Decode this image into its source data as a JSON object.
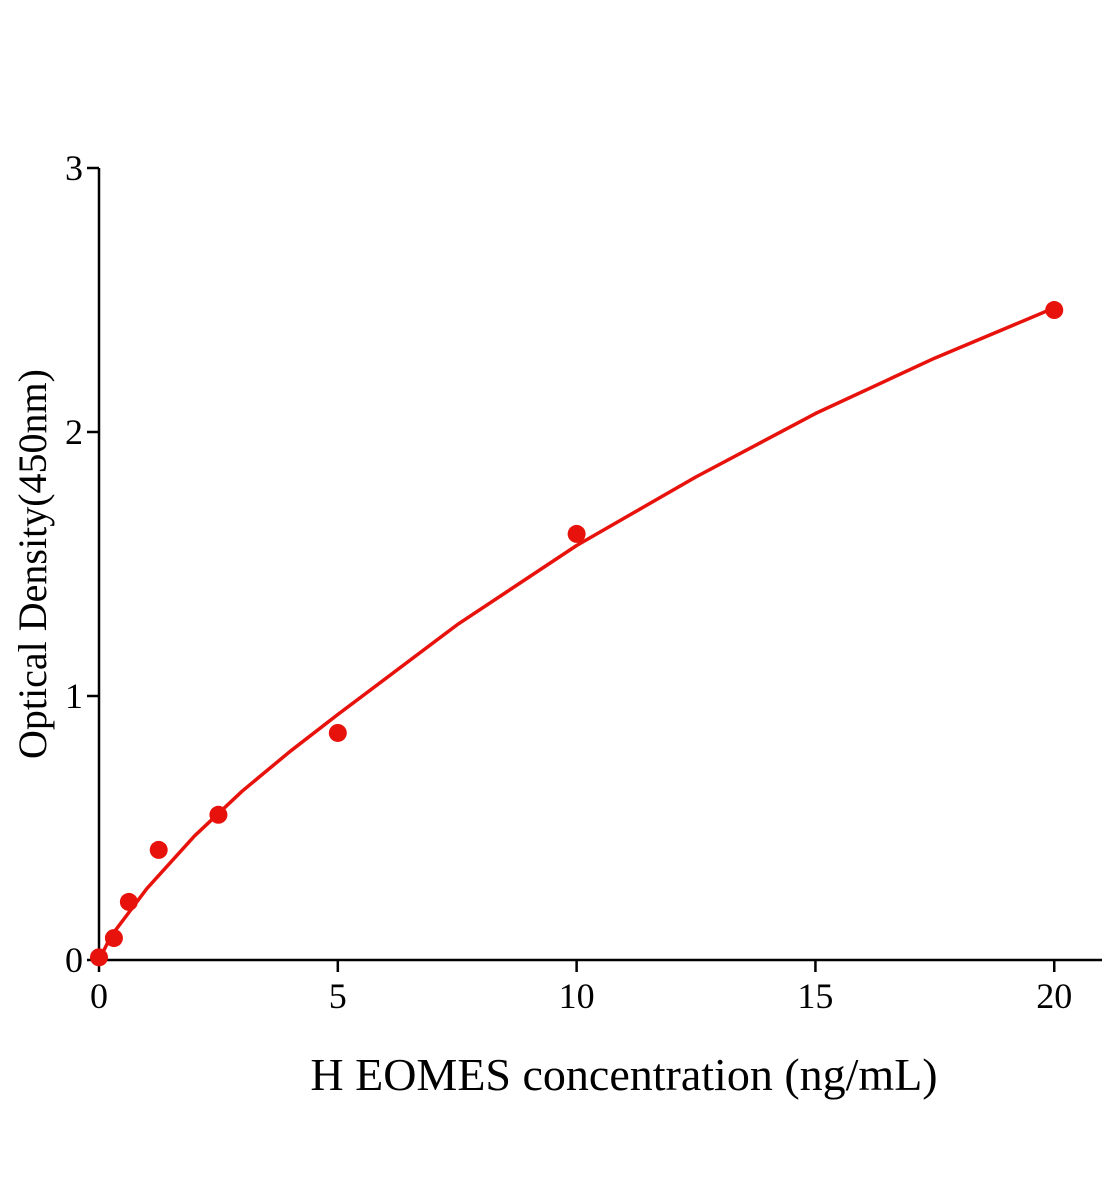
{
  "chart_data": {
    "type": "scatter",
    "x_label": "H EOMES concentration (ng/mL)",
    "y_label": "Optical Density(450nm)",
    "xlim": [
      0,
      21
    ],
    "ylim": [
      0,
      3
    ],
    "xticks": [
      0,
      5,
      10,
      15,
      20
    ],
    "yticks": [
      0,
      1,
      2,
      3
    ],
    "color": "#e8120c",
    "x": [
      0,
      0.3125,
      0.625,
      1.25,
      2.5,
      5,
      10,
      20
    ],
    "values": [
      0.01,
      0.083,
      0.22,
      0.417,
      0.55,
      0.86,
      1.614,
      2.462
    ],
    "curve": {
      "x": [
        0,
        0.25,
        0.5,
        1,
        1.5,
        2,
        3,
        4,
        5,
        7.5,
        10,
        12.5,
        15,
        17.5,
        20
      ],
      "values": [
        0,
        0.09,
        0.15,
        0.27,
        0.37,
        0.47,
        0.64,
        0.79,
        0.93,
        1.27,
        1.57,
        1.83,
        2.07,
        2.28,
        2.47
      ]
    }
  }
}
